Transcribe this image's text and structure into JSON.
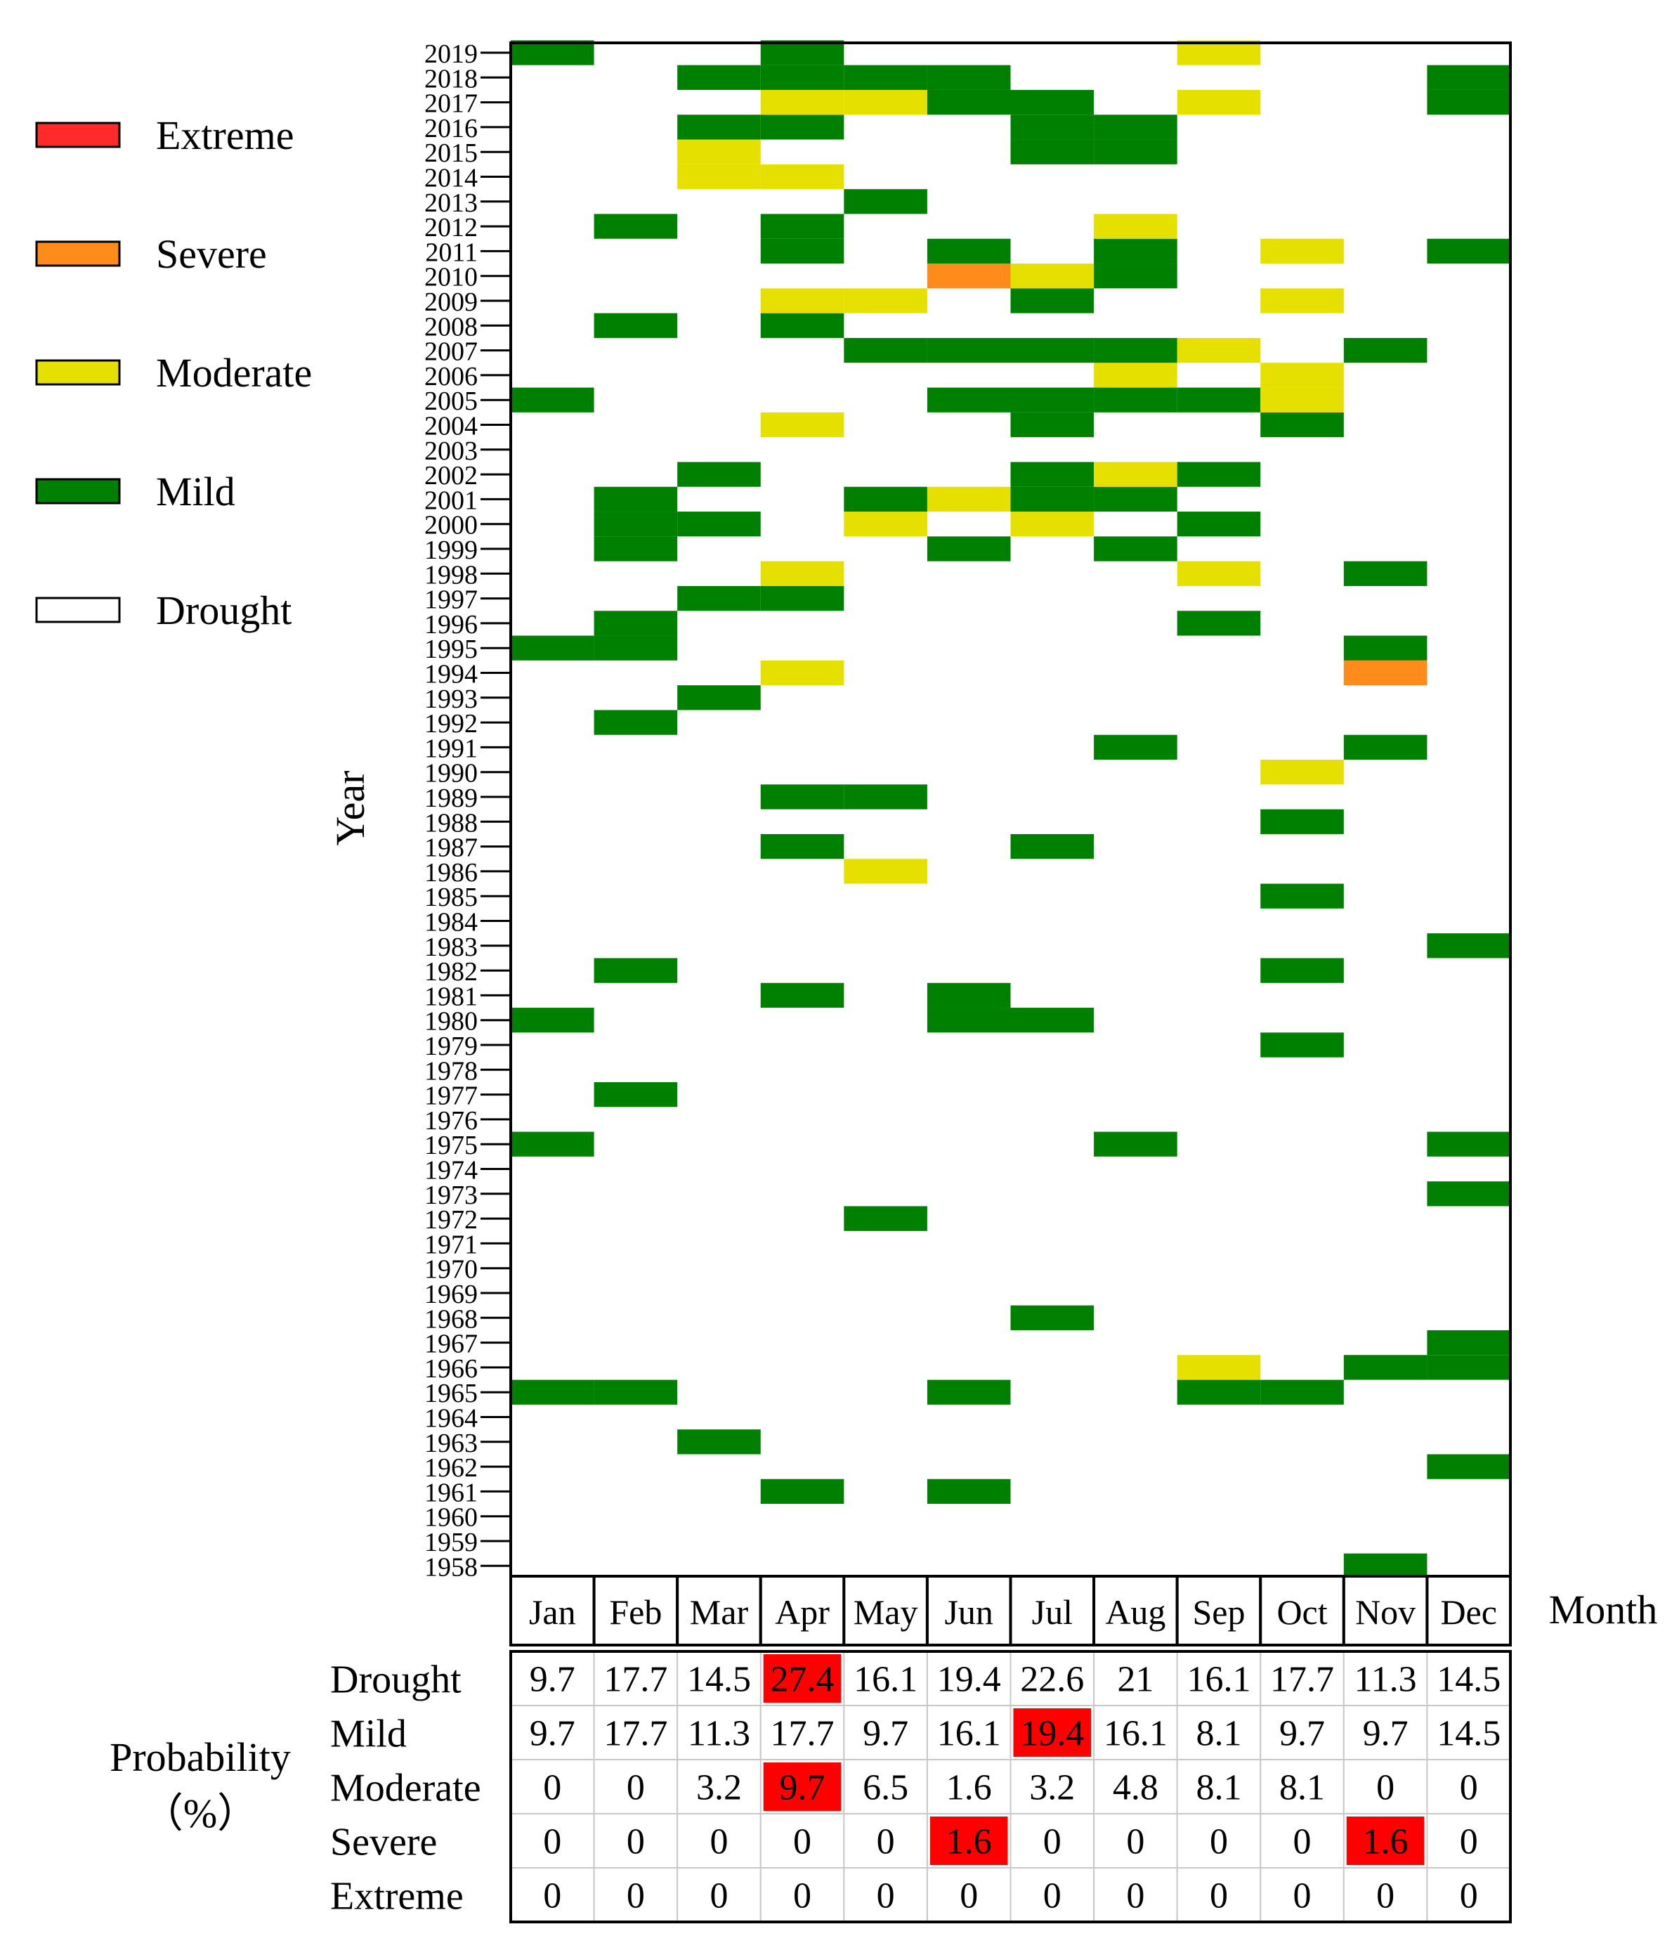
{
  "chart_data": {
    "type": "heatmap",
    "title": "",
    "ylabel": "Year",
    "xlabel": "Month",
    "months": [
      "Jan",
      "Feb",
      "Mar",
      "Apr",
      "May",
      "Jun",
      "Jul",
      "Aug",
      "Sep",
      "Oct",
      "Nov",
      "Dec"
    ],
    "year_range": [
      1958,
      2019
    ],
    "legend": {
      "placement": "top-left",
      "items": [
        {
          "key": "extreme",
          "label": "Extreme",
          "color": "#ff2b2b"
        },
        {
          "key": "severe",
          "label": "Severe",
          "color": "#ff8c1a"
        },
        {
          "key": "moderate",
          "label": "Moderate",
          "color": "#e6e000"
        },
        {
          "key": "mild",
          "label": "Mild",
          "color": "#008000"
        },
        {
          "key": "drought",
          "label": "Drought",
          "color": "#ffffff"
        }
      ]
    },
    "cells": {
      "2019": {
        "1": "mild",
        "4": "mild",
        "9": "moderate"
      },
      "2018": {
        "3": "mild",
        "4": "mild",
        "5": "mild",
        "6": "mild",
        "12": "mild"
      },
      "2017": {
        "4": "moderate",
        "5": "moderate",
        "6": "mild",
        "7": "mild",
        "9": "moderate",
        "12": "mild"
      },
      "2016": {
        "3": "mild",
        "4": "mild",
        "7": "mild",
        "8": "mild"
      },
      "2015": {
        "3": "moderate",
        "7": "mild",
        "8": "mild"
      },
      "2014": {
        "3": "moderate",
        "4": "moderate"
      },
      "2013": {
        "5": "mild"
      },
      "2012": {
        "2": "mild",
        "4": "mild",
        "8": "moderate"
      },
      "2011": {
        "4": "mild",
        "6": "mild",
        "8": "mild",
        "10": "moderate",
        "12": "mild"
      },
      "2010": {
        "6": "severe",
        "7": "moderate",
        "8": "mild"
      },
      "2009": {
        "4": "moderate",
        "5": "moderate",
        "7": "mild",
        "10": "moderate"
      },
      "2008": {
        "2": "mild",
        "4": "mild"
      },
      "2007": {
        "5": "mild",
        "6": "mild",
        "7": "mild",
        "8": "mild",
        "9": "moderate",
        "11": "mild"
      },
      "2006": {
        "8": "moderate",
        "10": "moderate"
      },
      "2005": {
        "1": "mild",
        "6": "mild",
        "7": "mild",
        "8": "mild",
        "9": "mild",
        "10": "moderate"
      },
      "2004": {
        "4": "moderate",
        "7": "mild",
        "10": "mild"
      },
      "2003": {},
      "2002": {
        "3": "mild",
        "7": "mild",
        "8": "moderate",
        "9": "mild"
      },
      "2001": {
        "2": "mild",
        "5": "mild",
        "6": "moderate",
        "7": "mild",
        "8": "mild"
      },
      "2000": {
        "2": "mild",
        "3": "mild",
        "5": "moderate",
        "7": "moderate",
        "9": "mild"
      },
      "1999": {
        "2": "mild",
        "6": "mild",
        "8": "mild"
      },
      "1998": {
        "4": "moderate",
        "9": "moderate",
        "11": "mild"
      },
      "1997": {
        "3": "mild",
        "4": "mild"
      },
      "1996": {
        "2": "mild",
        "9": "mild"
      },
      "1995": {
        "1": "mild",
        "2": "mild",
        "11": "mild"
      },
      "1994": {
        "4": "moderate",
        "11": "severe"
      },
      "1993": {
        "3": "mild"
      },
      "1992": {
        "2": "mild"
      },
      "1991": {
        "8": "mild",
        "11": "mild"
      },
      "1990": {
        "10": "moderate"
      },
      "1989": {
        "4": "mild",
        "5": "mild"
      },
      "1988": {
        "10": "mild"
      },
      "1987": {
        "4": "mild",
        "7": "mild"
      },
      "1986": {
        "5": "moderate"
      },
      "1985": {
        "10": "mild"
      },
      "1984": {},
      "1983": {
        "12": "mild"
      },
      "1982": {
        "2": "mild",
        "10": "mild"
      },
      "1981": {
        "4": "mild",
        "6": "mild"
      },
      "1980": {
        "1": "mild",
        "6": "mild",
        "7": "mild"
      },
      "1979": {
        "10": "mild"
      },
      "1978": {},
      "1977": {
        "2": "mild"
      },
      "1976": {},
      "1975": {
        "1": "mild",
        "8": "mild",
        "12": "mild"
      },
      "1974": {},
      "1973": {
        "12": "mild"
      },
      "1972": {
        "5": "mild"
      },
      "1971": {},
      "1970": {},
      "1969": {},
      "1968": {
        "7": "mild"
      },
      "1967": {
        "12": "mild"
      },
      "1966": {
        "9": "moderate",
        "11": "mild",
        "12": "mild"
      },
      "1965": {
        "1": "mild",
        "2": "mild",
        "6": "mild",
        "9": "mild",
        "10": "mild"
      },
      "1964": {},
      "1963": {
        "3": "mild"
      },
      "1962": {
        "12": "mild"
      },
      "1961": {
        "4": "mild",
        "6": "mild"
      },
      "1960": {},
      "1959": {},
      "1958": {
        "11": "mild"
      }
    },
    "probability_table": {
      "label_line1": "Probability",
      "label_line2": "（%）",
      "highlight_color": "#ff0000",
      "rows": [
        {
          "label": "Drought",
          "values": [
            "9.7",
            "17.7",
            "14.5",
            "27.4",
            "16.1",
            "19.4",
            "22.6",
            "21",
            "16.1",
            "17.7",
            "11.3",
            "14.5"
          ],
          "highlight": [
            3
          ]
        },
        {
          "label": "Mild",
          "values": [
            "9.7",
            "17.7",
            "11.3",
            "17.7",
            "9.7",
            "16.1",
            "19.4",
            "16.1",
            "8.1",
            "9.7",
            "9.7",
            "14.5"
          ],
          "highlight": [
            6
          ]
        },
        {
          "label": "Moderate",
          "values": [
            "0",
            "0",
            "3.2",
            "9.7",
            "6.5",
            "1.6",
            "3.2",
            "4.8",
            "8.1",
            "8.1",
            "0",
            "0"
          ],
          "highlight": [
            3
          ]
        },
        {
          "label": "Severe",
          "values": [
            "0",
            "0",
            "0",
            "0",
            "0",
            "1.6",
            "0",
            "0",
            "0",
            "0",
            "1.6",
            "0"
          ],
          "highlight": [
            5,
            10
          ]
        },
        {
          "label": "Extreme",
          "values": [
            "0",
            "0",
            "0",
            "0",
            "0",
            "0",
            "0",
            "0",
            "0",
            "0",
            "0",
            "0"
          ],
          "highlight": []
        }
      ]
    }
  }
}
